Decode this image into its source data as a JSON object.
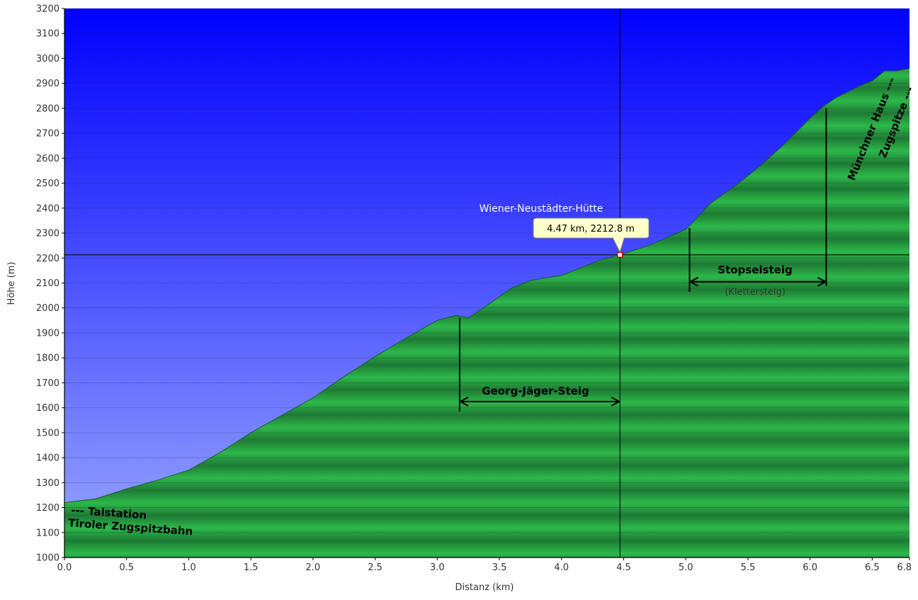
{
  "chart_data": {
    "type": "area",
    "xlabel": "Distanz  (km)",
    "ylabel": "Höhe (m)",
    "xlim": [
      0,
      6.8
    ],
    "ylim": [
      1000,
      3200
    ],
    "x_ticks": [
      "0.0",
      "0.5",
      "1.0",
      "1.5",
      "2.0",
      "2.5",
      "3.0",
      "3.5",
      "4.0",
      "4.5",
      "5.0",
      "5.5",
      "6.0",
      "6.5",
      "6.8"
    ],
    "y_ticks": [
      "1000",
      "1100",
      "1200",
      "1300",
      "1400",
      "1500",
      "1600",
      "1700",
      "1800",
      "1900",
      "2000",
      "2100",
      "2200",
      "2300",
      "2400",
      "2500",
      "2600",
      "2700",
      "2800",
      "2900",
      "3000",
      "3100",
      "3200"
    ],
    "grid": true,
    "series": [
      {
        "x": [
          0.0,
          0.25,
          0.5,
          0.75,
          1.0,
          1.25,
          1.5,
          1.75,
          2.0,
          2.25,
          2.5,
          2.75,
          3.0,
          3.15,
          3.25,
          3.4,
          3.6,
          3.75,
          4.0,
          4.15,
          4.3,
          4.47,
          4.7,
          5.0,
          5.05,
          5.2,
          5.4,
          5.6,
          5.8,
          6.0,
          6.1,
          6.2,
          6.4,
          6.5,
          6.6,
          6.7,
          6.8
        ],
        "y": [
          1220,
          1235,
          1275,
          1310,
          1350,
          1420,
          1500,
          1570,
          1640,
          1725,
          1805,
          1880,
          1950,
          1970,
          1960,
          2010,
          2080,
          2110,
          2130,
          2160,
          2190,
          2212.8,
          2250,
          2315,
          2340,
          2420,
          2490,
          2570,
          2660,
          2760,
          2805,
          2840,
          2890,
          2910,
          2950,
          2950,
          2960
        ]
      }
    ],
    "crosshair": {
      "x": 4.47,
      "y": 2212.8
    },
    "tooltip": "4.47 km, 2212.8 m",
    "annotations": {
      "huette": "Wiener-Neustädter-Hütte",
      "georg": "Georg-Jäger-Steig",
      "stopsel": "Stopselsteig",
      "stopsel_sub": "(Klettersteig)",
      "talstation_1": "--- Talstation",
      "talstation_2": "Tiroler Zugspitzbahn",
      "muenchner": "Münchner Haus ---",
      "zugspitze": "Zugspitze ---"
    },
    "brackets": [
      {
        "name": "georg-jaeger-steig-bracket",
        "x_start": 3.18,
        "x_end": 4.47,
        "y": 1625,
        "tick_top": 1960
      },
      {
        "name": "stopselsteig-bracket",
        "x_start": 5.03,
        "x_end": 6.13,
        "y": 2105,
        "tick_top": 2320,
        "tick_top_end": 2800
      }
    ],
    "colors": {
      "sky_top": "#0000ff",
      "sky_bottom": "#9aa8ff",
      "terrain_light": "#2db84a",
      "terrain_dark": "#1e7a34",
      "axis": "#000000",
      "grid": "#1a1a1a",
      "tooltip_bg": "#ffffcc"
    }
  }
}
